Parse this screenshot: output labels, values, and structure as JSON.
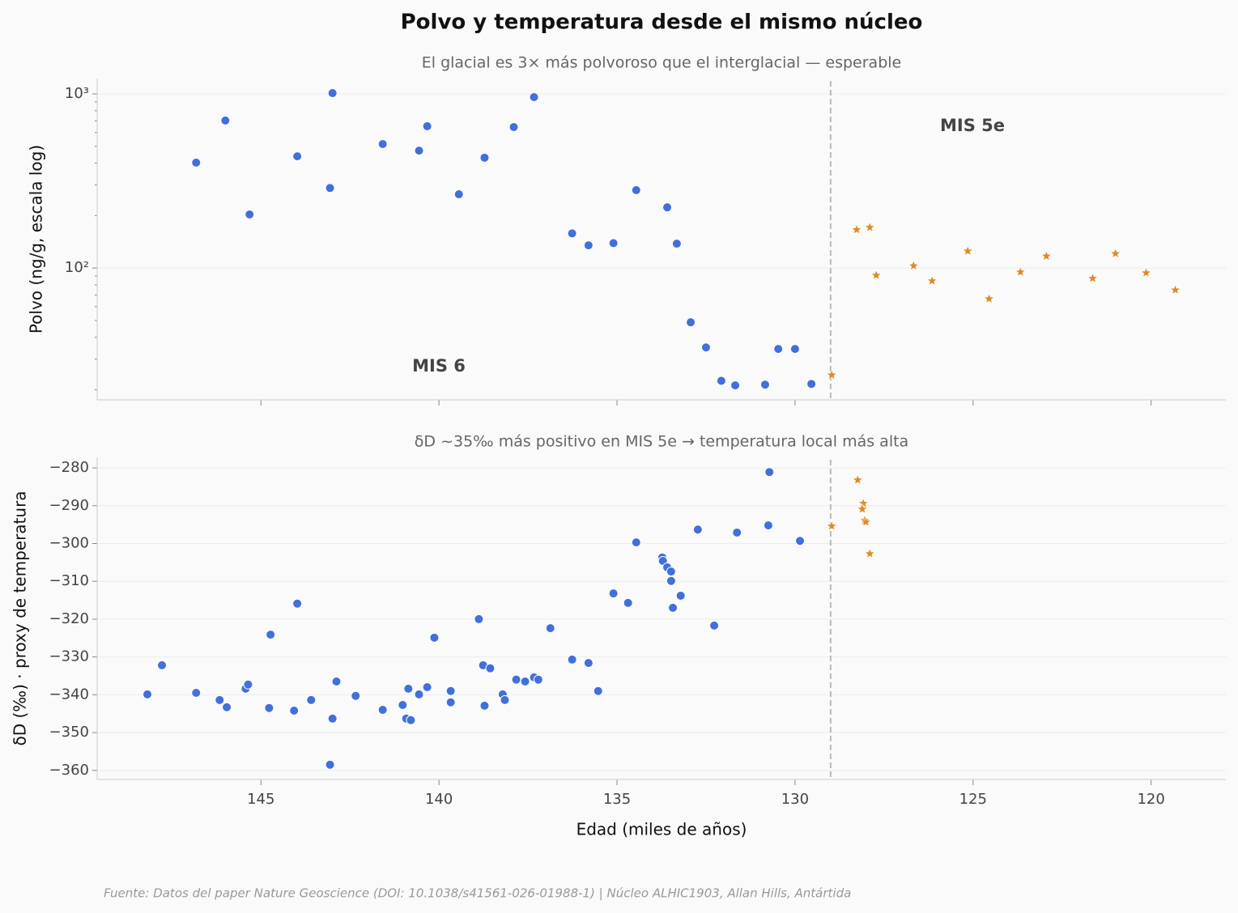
{
  "title": "Polvo y temperatura desde el mismo núcleo",
  "source": "Fuente: Datos del paper Nature Geoscience (DOI: 10.1038/s41561-026-01988-1) | Núcleo ALHIC1903, Allan Hills, Antártida",
  "chart_data": [
    {
      "type": "scatter",
      "subtitle": "El glacial es 3× más polvoroso que el interglacial — esperable",
      "ylabel": "Polvo (ng/g, escala log)",
      "log_y": true,
      "grid": true,
      "xlim": [
        149.6,
        117.9
      ],
      "xticks": [
        145,
        140,
        135,
        130,
        125,
        120
      ],
      "xtick_labels": false,
      "ylim": [
        17.5,
        1225
      ],
      "yticks": [
        {
          "value": 100,
          "label": "10²"
        },
        {
          "value": 1000,
          "label": "10³"
        }
      ],
      "vline": 129,
      "annotations": [
        {
          "text": "MIS 6",
          "color": "#2563eb"
        },
        {
          "text": "MIS 5e",
          "color": "#d97706"
        }
      ],
      "series": [
        {
          "color": "#3f6fe0",
          "marker": "circle",
          "x": [
            146.82,
            146.0,
            145.32,
            143.98,
            143.06,
            142.99,
            141.58,
            140.56,
            140.33,
            139.44,
            138.72,
            137.9,
            137.33,
            136.26,
            135.8,
            135.1,
            134.46,
            133.59,
            133.32,
            132.93,
            132.5,
            132.07,
            131.68,
            130.84,
            130.47,
            130.0,
            129.54
          ],
          "values": [
            403,
            703,
            203,
            438,
            288,
            1010,
            515,
            472,
            652,
            265,
            430,
            645,
            958,
            158,
            135,
            139,
            280,
            223,
            138,
            48.8,
            35,
            22.5,
            21.2,
            21.4,
            34.3,
            34.3,
            21.6
          ]
        },
        {
          "color": "#e08a1e",
          "marker": "star",
          "x": [
            128.97,
            128.27,
            127.9,
            127.72,
            126.67,
            126.15,
            125.15,
            124.55,
            123.67,
            122.94,
            121.64,
            121.0,
            120.14,
            119.32
          ],
          "values": [
            24.3,
            166,
            171,
            90.8,
            103,
            84.3,
            125,
            66.5,
            94.8,
            117,
            87.2,
            121,
            93.8,
            74.8
          ]
        }
      ]
    },
    {
      "type": "scatter",
      "subtitle": "δD ~35‰ más positivo en MIS 5e → temperatura local más alta",
      "ylabel": "δD (‰) · proxy de temperatura",
      "xlabel": "Edad (miles de años)",
      "log_y": false,
      "grid": true,
      "xlim": [
        149.6,
        117.9
      ],
      "xticks": [
        145,
        140,
        135,
        130,
        125,
        120
      ],
      "xtick_labels": true,
      "ylim": [
        -362.4,
        -277.2
      ],
      "yticks": [
        {
          "value": -360,
          "label": "−360"
        },
        {
          "value": -350,
          "label": "−350"
        },
        {
          "value": -340,
          "label": "−340"
        },
        {
          "value": -330,
          "label": "−330"
        },
        {
          "value": -320,
          "label": "−320"
        },
        {
          "value": -310,
          "label": "−310"
        },
        {
          "value": -300,
          "label": "−300"
        },
        {
          "value": -290,
          "label": "−290"
        },
        {
          "value": -280,
          "label": "−280"
        }
      ],
      "vline": 129,
      "series": [
        {
          "color": "#3f6fe0",
          "marker": "circle",
          "x": [
            148.19,
            147.78,
            146.82,
            146.16,
            145.96,
            145.43,
            145.36,
            144.73,
            144.77,
            144.07,
            143.98,
            143.59,
            143.06,
            142.99,
            142.88,
            142.34,
            141.58,
            141.02,
            140.92,
            140.86,
            140.79,
            140.56,
            140.33,
            140.13,
            139.67,
            139.67,
            138.88,
            138.76,
            138.72,
            138.56,
            138.21,
            138.15,
            137.83,
            137.58,
            137.33,
            137.21,
            136.87,
            136.26,
            135.8,
            135.53,
            135.1,
            134.69,
            134.46,
            133.73,
            133.71,
            133.59,
            133.48,
            133.48,
            133.43,
            133.21,
            132.73,
            132.27,
            131.63,
            130.75,
            130.72,
            129.86
          ],
          "values": [
            -339.9,
            -332.2,
            -339.5,
            -341.4,
            -343.3,
            -338.4,
            -337.3,
            -324.1,
            -343.5,
            -344.2,
            -315.9,
            -341.4,
            -358.5,
            -346.3,
            -336.5,
            -340.3,
            -344.0,
            -342.7,
            -346.3,
            -338.4,
            -346.7,
            -339.9,
            -338.0,
            -324.9,
            -339.0,
            -342.0,
            -320.0,
            -332.2,
            -342.9,
            -333.0,
            -339.9,
            -341.4,
            -336.0,
            -336.5,
            -335.4,
            -336.0,
            -322.4,
            -330.7,
            -331.6,
            -339.0,
            -313.2,
            -315.7,
            -299.7,
            -303.7,
            -304.6,
            -306.3,
            -307.4,
            -309.9,
            -317.0,
            -313.8,
            -296.3,
            -321.7,
            -297.1,
            -295.2,
            -281.1,
            -299.3
          ]
        },
        {
          "color": "#e08a1e",
          "marker": "star",
          "x": [
            128.97,
            128.24,
            128.08,
            128.11,
            128.04,
            128.01,
            127.9
          ],
          "values": [
            -295.4,
            -283.2,
            -289.4,
            -290.9,
            -293.9,
            -294.3,
            -302.7
          ]
        }
      ]
    }
  ]
}
